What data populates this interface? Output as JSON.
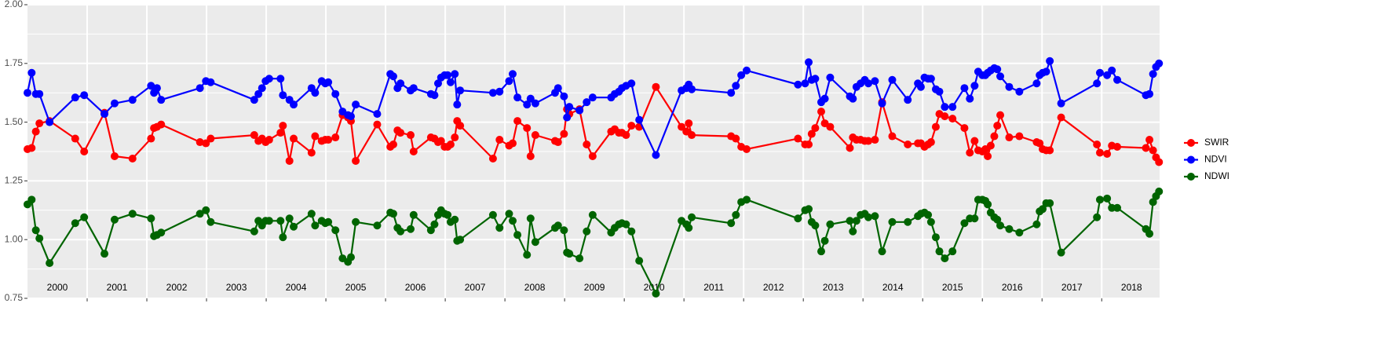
{
  "chart_data": {
    "type": "line",
    "x": [
      2000,
      2000.07,
      2000.14,
      2000.2,
      2000.37,
      2000.8,
      2000.95,
      2001.29,
      2001.46,
      2001.76,
      2002.07,
      2002.12,
      2002.17,
      2002.24,
      2002.89,
      2002.99,
      2003.07,
      2003.8,
      2003.87,
      2003.93,
      2003.99,
      2004.05,
      2004.24,
      2004.28,
      2004.39,
      2004.46,
      2004.76,
      2004.82,
      2004.93,
      2004.99,
      2005.04,
      2005.16,
      2005.28,
      2005.37,
      2005.42,
      2005.5,
      2005.86,
      2006.08,
      2006.13,
      2006.2,
      2006.25,
      2006.42,
      2006.47,
      2006.76,
      2006.82,
      2006.88,
      2006.93,
      2006.99,
      2007.04,
      2007.09,
      2007.16,
      2007.2,
      2007.25,
      2007.8,
      2007.91,
      2008.07,
      2008.13,
      2008.21,
      2008.37,
      2008.43,
      2008.51,
      2008.84,
      2008.89,
      2008.99,
      2009.04,
      2009.08,
      2009.25,
      2009.37,
      2009.47,
      2009.78,
      2009.84,
      2009.91,
      2009.96,
      2010.03,
      2010.12,
      2010.25,
      2010.53,
      2010.96,
      2011.04,
      2011.08,
      2011.13,
      2011.79,
      2011.87,
      2011.96,
      2012.05,
      2012.91,
      2013.03,
      2013.09,
      2013.14,
      2013.2,
      2013.3,
      2013.36,
      2013.45,
      2013.78,
      2013.83,
      2013.89,
      2013.96,
      2014.03,
      2014.09,
      2014.2,
      2014.32,
      2014.49,
      2014.75,
      2014.92,
      2014.97,
      2015.03,
      2015.09,
      2015.14,
      2015.22,
      2015.28,
      2015.37,
      2015.5,
      2015.7,
      2015.79,
      2015.87,
      2015.93,
      2016,
      2016.05,
      2016.09,
      2016.14,
      2016.2,
      2016.25,
      2016.3,
      2016.45,
      2016.62,
      2016.91,
      2016.96,
      2017.01,
      2017.07,
      2017.13,
      2017.32,
      2017.92,
      2017.97,
      2018.09,
      2018.17,
      2018.26,
      2018.74,
      2018.8,
      2018.86,
      2018.91,
      2018.96
    ],
    "series": [
      {
        "name": "SWIR",
        "color": "#ff0000",
        "values": [
          1.385,
          1.39,
          1.46,
          1.495,
          1.505,
          1.43,
          1.375,
          1.54,
          1.355,
          1.345,
          1.43,
          1.475,
          1.48,
          1.49,
          1.415,
          1.41,
          1.43,
          1.445,
          1.42,
          1.43,
          1.415,
          1.425,
          1.455,
          1.485,
          1.335,
          1.43,
          1.37,
          1.44,
          1.42,
          1.425,
          1.425,
          1.435,
          1.53,
          1.52,
          1.505,
          1.335,
          1.49,
          1.395,
          1.405,
          1.465,
          1.455,
          1.445,
          1.375,
          1.435,
          1.43,
          1.415,
          1.42,
          1.395,
          1.395,
          1.405,
          1.435,
          1.505,
          1.485,
          1.345,
          1.425,
          1.4,
          1.41,
          1.505,
          1.475,
          1.355,
          1.445,
          1.42,
          1.415,
          1.45,
          1.555,
          1.535,
          1.555,
          1.405,
          1.355,
          1.46,
          1.47,
          1.455,
          1.455,
          1.445,
          1.485,
          1.48,
          1.65,
          1.48,
          1.46,
          1.495,
          1.445,
          1.44,
          1.43,
          1.395,
          1.385,
          1.43,
          1.405,
          1.405,
          1.45,
          1.475,
          1.545,
          1.495,
          1.48,
          1.39,
          1.435,
          1.425,
          1.425,
          1.42,
          1.42,
          1.425,
          1.585,
          1.44,
          1.405,
          1.41,
          1.41,
          1.395,
          1.405,
          1.415,
          1.48,
          1.535,
          1.525,
          1.515,
          1.475,
          1.37,
          1.42,
          1.38,
          1.375,
          1.385,
          1.355,
          1.4,
          1.44,
          1.485,
          1.53,
          1.435,
          1.44,
          1.415,
          1.41,
          1.385,
          1.38,
          1.38,
          1.52,
          1.405,
          1.37,
          1.365,
          1.4,
          1.395,
          1.39,
          1.425,
          1.38,
          1.35,
          1.33
        ]
      },
      {
        "name": "NDVI",
        "color": "#0000ff",
        "values": [
          1.625,
          1.71,
          1.62,
          1.62,
          1.5,
          1.605,
          1.615,
          1.535,
          1.58,
          1.595,
          1.655,
          1.625,
          1.645,
          1.595,
          1.645,
          1.675,
          1.67,
          1.595,
          1.62,
          1.645,
          1.675,
          1.685,
          1.685,
          1.615,
          1.595,
          1.575,
          1.645,
          1.625,
          1.675,
          1.665,
          1.67,
          1.62,
          1.545,
          1.53,
          1.525,
          1.575,
          1.535,
          1.705,
          1.695,
          1.645,
          1.665,
          1.635,
          1.645,
          1.62,
          1.615,
          1.665,
          1.69,
          1.7,
          1.7,
          1.67,
          1.705,
          1.575,
          1.635,
          1.625,
          1.63,
          1.675,
          1.705,
          1.605,
          1.575,
          1.6,
          1.58,
          1.625,
          1.645,
          1.61,
          1.52,
          1.565,
          1.55,
          1.585,
          1.605,
          1.605,
          1.62,
          1.63,
          1.645,
          1.655,
          1.665,
          1.51,
          1.36,
          1.635,
          1.645,
          1.66,
          1.64,
          1.625,
          1.655,
          1.7,
          1.72,
          1.66,
          1.665,
          1.755,
          1.68,
          1.685,
          1.585,
          1.6,
          1.69,
          1.61,
          1.6,
          1.65,
          1.665,
          1.68,
          1.665,
          1.675,
          1.58,
          1.68,
          1.595,
          1.665,
          1.65,
          1.69,
          1.685,
          1.685,
          1.64,
          1.63,
          1.565,
          1.565,
          1.645,
          1.6,
          1.655,
          1.715,
          1.7,
          1.7,
          1.71,
          1.72,
          1.73,
          1.725,
          1.695,
          1.65,
          1.63,
          1.665,
          1.7,
          1.71,
          1.715,
          1.76,
          1.58,
          1.665,
          1.71,
          1.7,
          1.72,
          1.68,
          1.615,
          1.62,
          1.705,
          1.735,
          1.75
        ]
      },
      {
        "name": "NDWI",
        "color": "#006400",
        "values": [
          1.15,
          1.17,
          1.04,
          1.005,
          0.9,
          1.07,
          1.095,
          0.94,
          1.085,
          1.11,
          1.09,
          1.015,
          1.02,
          1.03,
          1.11,
          1.125,
          1.075,
          1.035,
          1.08,
          1.06,
          1.08,
          1.08,
          1.08,
          1.01,
          1.09,
          1.055,
          1.11,
          1.06,
          1.08,
          1.07,
          1.075,
          1.04,
          0.92,
          0.905,
          0.925,
          1.075,
          1.06,
          1.115,
          1.11,
          1.05,
          1.035,
          1.045,
          1.105,
          1.04,
          1.065,
          1.105,
          1.125,
          1.11,
          1.105,
          1.075,
          1.085,
          0.995,
          1.0,
          1.105,
          1.05,
          1.11,
          1.08,
          1.02,
          0.935,
          1.09,
          0.99,
          1.05,
          1.06,
          1.04,
          0.945,
          0.94,
          0.92,
          1.035,
          1.105,
          1.03,
          1.05,
          1.065,
          1.07,
          1.065,
          1.035,
          0.91,
          0.77,
          1.08,
          1.065,
          1.05,
          1.095,
          1.07,
          1.105,
          1.16,
          1.17,
          1.09,
          1.125,
          1.13,
          1.075,
          1.06,
          0.95,
          0.995,
          1.065,
          1.08,
          1.035,
          1.08,
          1.105,
          1.11,
          1.095,
          1.1,
          0.95,
          1.075,
          1.075,
          1.1,
          1.11,
          1.115,
          1.105,
          1.075,
          1.01,
          0.95,
          0.92,
          0.95,
          1.07,
          1.09,
          1.09,
          1.17,
          1.17,
          1.165,
          1.15,
          1.115,
          1.095,
          1.085,
          1.06,
          1.045,
          1.03,
          1.065,
          1.12,
          1.13,
          1.155,
          1.155,
          0.945,
          1.095,
          1.17,
          1.175,
          1.135,
          1.135,
          1.045,
          1.025,
          1.16,
          1.185,
          1.205
        ]
      }
    ],
    "xlim": [
      2000,
      2018.97
    ],
    "xticks": [
      {
        "value": 2000.5,
        "label": "2000"
      },
      {
        "value": 2001.5,
        "label": "2001"
      },
      {
        "value": 2002.5,
        "label": "2002"
      },
      {
        "value": 2003.5,
        "label": "2003"
      },
      {
        "value": 2004.5,
        "label": "2004"
      },
      {
        "value": 2005.5,
        "label": "2005"
      },
      {
        "value": 2006.5,
        "label": "2006"
      },
      {
        "value": 2007.5,
        "label": "2007"
      },
      {
        "value": 2008.5,
        "label": "2008"
      },
      {
        "value": 2009.5,
        "label": "2009"
      },
      {
        "value": 2010.5,
        "label": "2010"
      },
      {
        "value": 2011.5,
        "label": "2011"
      },
      {
        "value": 2012.5,
        "label": "2012"
      },
      {
        "value": 2013.5,
        "label": "2013"
      },
      {
        "value": 2014.5,
        "label": "2014"
      },
      {
        "value": 2015.5,
        "label": "2015"
      },
      {
        "value": 2016.5,
        "label": "2016"
      },
      {
        "value": 2017.5,
        "label": "2017"
      },
      {
        "value": 2018.5,
        "label": "2018"
      }
    ],
    "year_lines": [
      2001,
      2002,
      2003,
      2004,
      2005,
      2006,
      2007,
      2008,
      2009,
      2010,
      2011,
      2012,
      2013,
      2014,
      2015,
      2016,
      2017,
      2018
    ],
    "ylim": [
      0.75,
      2.0
    ],
    "yticks": [
      {
        "value": 0.75,
        "label": "0.75"
      },
      {
        "value": 1.0,
        "label": "1.00"
      },
      {
        "value": 1.25,
        "label": "1.25"
      },
      {
        "value": 1.5,
        "label": "1.50"
      },
      {
        "value": 1.75,
        "label": "1.75"
      },
      {
        "value": 2.0,
        "label": "2.00"
      }
    ],
    "grid": true,
    "legend": "right"
  }
}
